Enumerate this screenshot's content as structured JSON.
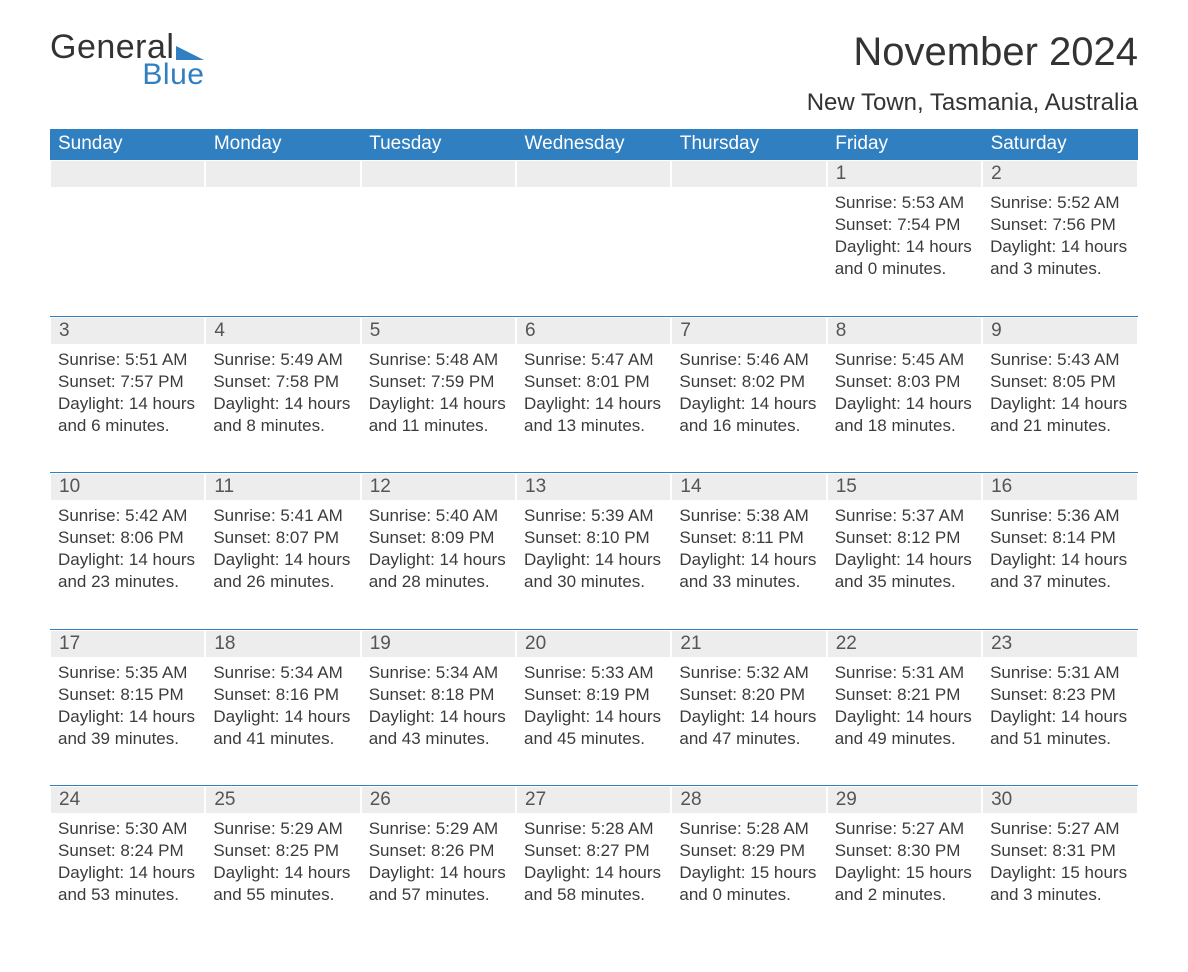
{
  "logo": {
    "text1": "General",
    "text2": "Blue",
    "accent_color": "#2f7fc1"
  },
  "title": "November 2024",
  "location": "New Town, Tasmania, Australia",
  "colors": {
    "header_bg": "#2f7fc1",
    "header_text": "#ffffff",
    "daynum_bg": "#ededed",
    "daynum_text": "#555555",
    "body_text": "#3b3b3b",
    "rule": "#2f7fc1",
    "page_bg": "#ffffff"
  },
  "typography": {
    "title_size": 40,
    "location_size": 24,
    "header_size": 19,
    "body_size": 17
  },
  "day_headers": [
    "Sunday",
    "Monday",
    "Tuesday",
    "Wednesday",
    "Thursday",
    "Friday",
    "Saturday"
  ],
  "labels": {
    "sunrise": "Sunrise",
    "sunset": "Sunset",
    "daylight": "Daylight"
  },
  "weeks": [
    [
      null,
      null,
      null,
      null,
      null,
      {
        "n": "1",
        "sunrise": "5:53 AM",
        "sunset": "7:54 PM",
        "daylight": "14 hours and 0 minutes."
      },
      {
        "n": "2",
        "sunrise": "5:52 AM",
        "sunset": "7:56 PM",
        "daylight": "14 hours and 3 minutes."
      }
    ],
    [
      {
        "n": "3",
        "sunrise": "5:51 AM",
        "sunset": "7:57 PM",
        "daylight": "14 hours and 6 minutes."
      },
      {
        "n": "4",
        "sunrise": "5:49 AM",
        "sunset": "7:58 PM",
        "daylight": "14 hours and 8 minutes."
      },
      {
        "n": "5",
        "sunrise": "5:48 AM",
        "sunset": "7:59 PM",
        "daylight": "14 hours and 11 minutes."
      },
      {
        "n": "6",
        "sunrise": "5:47 AM",
        "sunset": "8:01 PM",
        "daylight": "14 hours and 13 minutes."
      },
      {
        "n": "7",
        "sunrise": "5:46 AM",
        "sunset": "8:02 PM",
        "daylight": "14 hours and 16 minutes."
      },
      {
        "n": "8",
        "sunrise": "5:45 AM",
        "sunset": "8:03 PM",
        "daylight": "14 hours and 18 minutes."
      },
      {
        "n": "9",
        "sunrise": "5:43 AM",
        "sunset": "8:05 PM",
        "daylight": "14 hours and 21 minutes."
      }
    ],
    [
      {
        "n": "10",
        "sunrise": "5:42 AM",
        "sunset": "8:06 PM",
        "daylight": "14 hours and 23 minutes."
      },
      {
        "n": "11",
        "sunrise": "5:41 AM",
        "sunset": "8:07 PM",
        "daylight": "14 hours and 26 minutes."
      },
      {
        "n": "12",
        "sunrise": "5:40 AM",
        "sunset": "8:09 PM",
        "daylight": "14 hours and 28 minutes."
      },
      {
        "n": "13",
        "sunrise": "5:39 AM",
        "sunset": "8:10 PM",
        "daylight": "14 hours and 30 minutes."
      },
      {
        "n": "14",
        "sunrise": "5:38 AM",
        "sunset": "8:11 PM",
        "daylight": "14 hours and 33 minutes."
      },
      {
        "n": "15",
        "sunrise": "5:37 AM",
        "sunset": "8:12 PM",
        "daylight": "14 hours and 35 minutes."
      },
      {
        "n": "16",
        "sunrise": "5:36 AM",
        "sunset": "8:14 PM",
        "daylight": "14 hours and 37 minutes."
      }
    ],
    [
      {
        "n": "17",
        "sunrise": "5:35 AM",
        "sunset": "8:15 PM",
        "daylight": "14 hours and 39 minutes."
      },
      {
        "n": "18",
        "sunrise": "5:34 AM",
        "sunset": "8:16 PM",
        "daylight": "14 hours and 41 minutes."
      },
      {
        "n": "19",
        "sunrise": "5:34 AM",
        "sunset": "8:18 PM",
        "daylight": "14 hours and 43 minutes."
      },
      {
        "n": "20",
        "sunrise": "5:33 AM",
        "sunset": "8:19 PM",
        "daylight": "14 hours and 45 minutes."
      },
      {
        "n": "21",
        "sunrise": "5:32 AM",
        "sunset": "8:20 PM",
        "daylight": "14 hours and 47 minutes."
      },
      {
        "n": "22",
        "sunrise": "5:31 AM",
        "sunset": "8:21 PM",
        "daylight": "14 hours and 49 minutes."
      },
      {
        "n": "23",
        "sunrise": "5:31 AM",
        "sunset": "8:23 PM",
        "daylight": "14 hours and 51 minutes."
      }
    ],
    [
      {
        "n": "24",
        "sunrise": "5:30 AM",
        "sunset": "8:24 PM",
        "daylight": "14 hours and 53 minutes."
      },
      {
        "n": "25",
        "sunrise": "5:29 AM",
        "sunset": "8:25 PM",
        "daylight": "14 hours and 55 minutes."
      },
      {
        "n": "26",
        "sunrise": "5:29 AM",
        "sunset": "8:26 PM",
        "daylight": "14 hours and 57 minutes."
      },
      {
        "n": "27",
        "sunrise": "5:28 AM",
        "sunset": "8:27 PM",
        "daylight": "14 hours and 58 minutes."
      },
      {
        "n": "28",
        "sunrise": "5:28 AM",
        "sunset": "8:29 PM",
        "daylight": "15 hours and 0 minutes."
      },
      {
        "n": "29",
        "sunrise": "5:27 AM",
        "sunset": "8:30 PM",
        "daylight": "15 hours and 2 minutes."
      },
      {
        "n": "30",
        "sunrise": "5:27 AM",
        "sunset": "8:31 PM",
        "daylight": "15 hours and 3 minutes."
      }
    ]
  ]
}
